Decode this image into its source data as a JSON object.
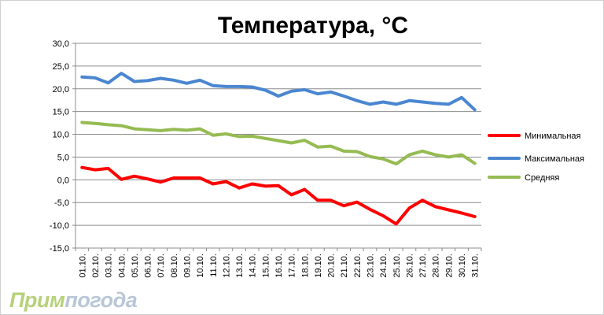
{
  "chart_data": {
    "type": "line",
    "title": "Температура, °C",
    "categories": [
      "01.10.",
      "02.10.",
      "03.10.",
      "04.10.",
      "05.10.",
      "06.10.",
      "07.10.",
      "08.10.",
      "09.10.",
      "10.10.",
      "11.10.",
      "12.10.",
      "13.10.",
      "14.10.",
      "15.10.",
      "16.10.",
      "17.10.",
      "18.10.",
      "19.10.",
      "20.10.",
      "21.10.",
      "22.10.",
      "23.10.",
      "24.10.",
      "25.10.",
      "26.10.",
      "27.10.",
      "28.10.",
      "29.10.",
      "30.10.",
      "31.10."
    ],
    "ylim": [
      -15,
      30
    ],
    "yticks": [
      "30,0",
      "25,0",
      "20,0",
      "15,0",
      "10,0",
      "5,0",
      "0,0",
      "-5,0",
      "-10,0",
      "-15,0"
    ],
    "grid": true,
    "legend_position": "right",
    "series": [
      {
        "name": "Минимальная",
        "color": "#ff0000",
        "values": [
          2.7,
          2.2,
          2.5,
          0.1,
          0.8,
          0.2,
          -0.5,
          0.4,
          0.4,
          0.4,
          -0.9,
          -0.4,
          -1.8,
          -0.9,
          -1.4,
          -1.3,
          -3.3,
          -2.1,
          -4.5,
          -4.5,
          -5.7,
          -4.9,
          -6.5,
          -7.9,
          -9.7,
          -6.2,
          -4.5,
          -5.9,
          -6.6,
          -7.3,
          -8.1
        ]
      },
      {
        "name": "Максимальная",
        "color": "#4a86d0",
        "values": [
          22.6,
          22.4,
          21.3,
          23.4,
          21.6,
          21.8,
          22.3,
          21.9,
          21.2,
          21.9,
          20.7,
          20.5,
          20.5,
          20.4,
          19.7,
          18.4,
          19.5,
          19.8,
          18.9,
          19.3,
          18.4,
          17.4,
          16.6,
          17.1,
          16.6,
          17.4,
          17.1,
          16.8,
          16.6,
          18.1,
          15.4
        ]
      },
      {
        "name": "Средняя",
        "color": "#95bb52",
        "values": [
          12.6,
          12.4,
          12.1,
          11.9,
          11.2,
          11.0,
          10.8,
          11.1,
          10.9,
          11.2,
          9.8,
          10.1,
          9.5,
          9.6,
          9.1,
          8.6,
          8.1,
          8.7,
          7.2,
          7.4,
          6.3,
          6.2,
          5.1,
          4.6,
          3.5,
          5.5,
          6.3,
          5.5,
          5.0,
          5.5,
          3.6
        ]
      }
    ]
  },
  "watermark": {
    "part1": "Прим",
    "part2": "погода"
  }
}
